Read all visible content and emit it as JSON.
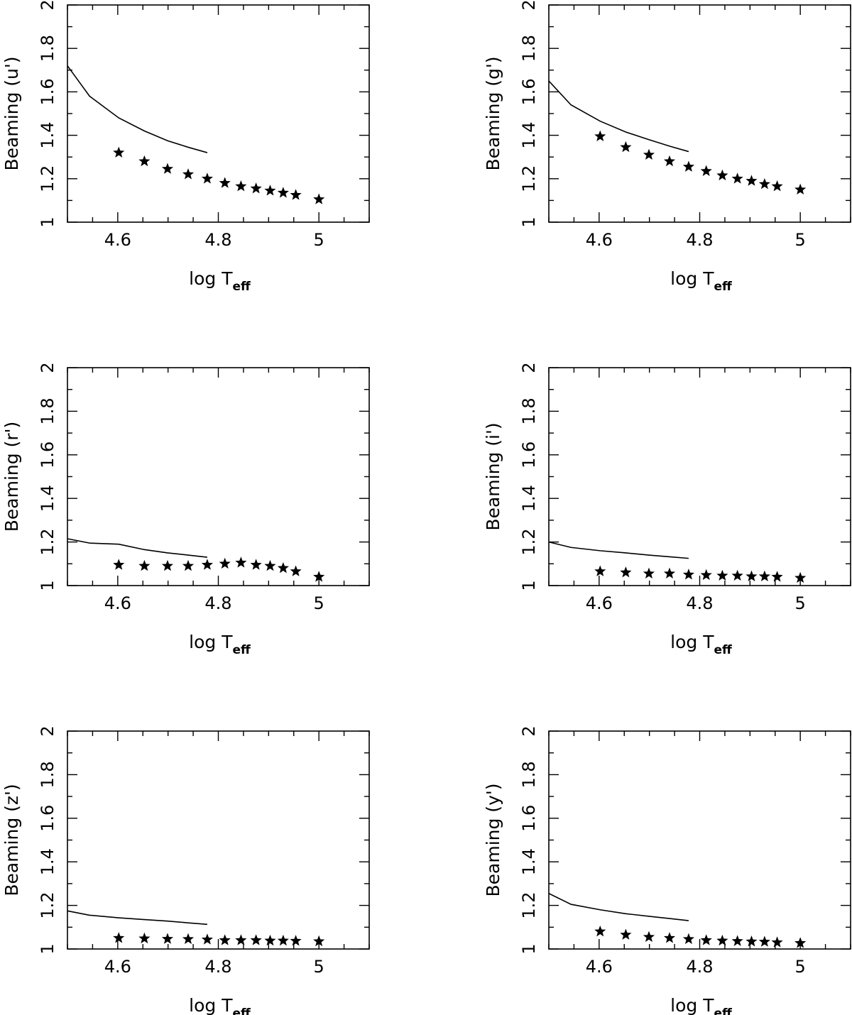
{
  "chart_data": [
    {
      "type": "scatter",
      "title": "",
      "xlabel": "log T",
      "xlabel_sub": "eff",
      "ylabel": "Beaming (u')",
      "xlim": [
        4.5,
        5.1
      ],
      "ylim": [
        1,
        2
      ],
      "xticks": [
        "4.6",
        "4.8",
        "5"
      ],
      "yticks": [
        "1",
        "1.2",
        "1.4",
        "1.6",
        "1.8",
        "2"
      ],
      "grid": false,
      "series": [
        {
          "style": "line",
          "x": [
            4.5,
            4.544,
            4.602,
            4.653,
            4.699,
            4.74,
            4.778
          ],
          "y": [
            1.72,
            1.58,
            1.48,
            1.42,
            1.375,
            1.345,
            1.32
          ]
        },
        {
          "style": "star",
          "x": [
            4.602,
            4.653,
            4.699,
            4.74,
            4.778,
            4.813,
            4.845,
            4.875,
            4.903,
            4.929,
            4.954,
            5.0
          ],
          "y": [
            1.32,
            1.28,
            1.245,
            1.22,
            1.2,
            1.18,
            1.165,
            1.155,
            1.145,
            1.135,
            1.125,
            1.105
          ]
        }
      ]
    },
    {
      "type": "scatter",
      "title": "",
      "xlabel": "log T",
      "xlabel_sub": "eff",
      "ylabel": "Beaming (g')",
      "xlim": [
        4.5,
        5.1
      ],
      "ylim": [
        1,
        2
      ],
      "xticks": [
        "4.6",
        "4.8",
        "5"
      ],
      "yticks": [
        "1",
        "1.2",
        "1.4",
        "1.6",
        "1.8",
        "2"
      ],
      "grid": false,
      "series": [
        {
          "style": "line",
          "x": [
            4.5,
            4.544,
            4.602,
            4.653,
            4.699,
            4.74,
            4.778
          ],
          "y": [
            1.65,
            1.54,
            1.465,
            1.415,
            1.38,
            1.35,
            1.325
          ]
        },
        {
          "style": "star",
          "x": [
            4.602,
            4.653,
            4.699,
            4.74,
            4.778,
            4.813,
            4.845,
            4.875,
            4.903,
            4.929,
            4.954,
            5.0
          ],
          "y": [
            1.395,
            1.345,
            1.31,
            1.28,
            1.255,
            1.235,
            1.215,
            1.2,
            1.19,
            1.175,
            1.165,
            1.15
          ]
        }
      ]
    },
    {
      "type": "scatter",
      "title": "",
      "xlabel": "log T",
      "xlabel_sub": "eff",
      "ylabel": "Beaming (r')",
      "xlim": [
        4.5,
        5.1
      ],
      "ylim": [
        1,
        2
      ],
      "xticks": [
        "4.6",
        "4.8",
        "5"
      ],
      "yticks": [
        "1",
        "1.2",
        "1.4",
        "1.6",
        "1.8",
        "2"
      ],
      "grid": false,
      "series": [
        {
          "style": "line",
          "x": [
            4.5,
            4.544,
            4.602,
            4.653,
            4.699,
            4.74,
            4.778
          ],
          "y": [
            1.215,
            1.195,
            1.19,
            1.165,
            1.15,
            1.14,
            1.13
          ]
        },
        {
          "style": "star",
          "x": [
            4.602,
            4.653,
            4.699,
            4.74,
            4.778,
            4.813,
            4.845,
            4.875,
            4.903,
            4.929,
            4.954,
            5.0
          ],
          "y": [
            1.095,
            1.09,
            1.09,
            1.09,
            1.095,
            1.1,
            1.105,
            1.095,
            1.09,
            1.08,
            1.065,
            1.04
          ]
        }
      ]
    },
    {
      "type": "scatter",
      "title": "",
      "xlabel": "log T",
      "xlabel_sub": "eff",
      "ylabel": "Beaming (i')",
      "xlim": [
        4.5,
        5.1
      ],
      "ylim": [
        1,
        2
      ],
      "xticks": [
        "4.6",
        "4.8",
        "5"
      ],
      "yticks": [
        "1",
        "1.2",
        "1.4",
        "1.6",
        "1.8",
        "2"
      ],
      "grid": false,
      "series": [
        {
          "style": "line",
          "x": [
            4.5,
            4.544,
            4.602,
            4.653,
            4.699,
            4.74,
            4.778
          ],
          "y": [
            1.2,
            1.175,
            1.16,
            1.15,
            1.14,
            1.132,
            1.125
          ]
        },
        {
          "style": "star",
          "x": [
            4.602,
            4.653,
            4.699,
            4.74,
            4.778,
            4.813,
            4.845,
            4.875,
            4.903,
            4.929,
            4.954,
            5.0
          ],
          "y": [
            1.065,
            1.06,
            1.055,
            1.055,
            1.05,
            1.048,
            1.045,
            1.045,
            1.042,
            1.042,
            1.04,
            1.035
          ]
        }
      ]
    },
    {
      "type": "scatter",
      "title": "",
      "xlabel": "log T",
      "xlabel_sub": "eff",
      "ylabel": "Beaming (z')",
      "xlim": [
        4.5,
        5.1
      ],
      "ylim": [
        1,
        2
      ],
      "xticks": [
        "4.6",
        "4.8",
        "5"
      ],
      "yticks": [
        "1",
        "1.2",
        "1.4",
        "1.6",
        "1.8",
        "2"
      ],
      "grid": false,
      "series": [
        {
          "style": "line",
          "x": [
            4.5,
            4.544,
            4.602,
            4.653,
            4.699,
            4.74,
            4.778
          ],
          "y": [
            1.175,
            1.155,
            1.143,
            1.135,
            1.128,
            1.12,
            1.113
          ]
        },
        {
          "style": "star",
          "x": [
            4.602,
            4.653,
            4.699,
            4.74,
            4.778,
            4.813,
            4.845,
            4.875,
            4.903,
            4.929,
            4.954,
            5.0
          ],
          "y": [
            1.05,
            1.048,
            1.046,
            1.045,
            1.043,
            1.04,
            1.04,
            1.04,
            1.038,
            1.038,
            1.037,
            1.035
          ]
        }
      ]
    },
    {
      "type": "scatter",
      "title": "",
      "xlabel": "log T",
      "xlabel_sub": "eff",
      "ylabel": "Beaming (y')",
      "xlim": [
        4.5,
        5.1
      ],
      "ylim": [
        1,
        2
      ],
      "xticks": [
        "4.6",
        "4.8",
        "5"
      ],
      "yticks": [
        "1",
        "1.2",
        "1.4",
        "1.6",
        "1.8",
        "2"
      ],
      "grid": false,
      "series": [
        {
          "style": "line",
          "x": [
            4.5,
            4.544,
            4.602,
            4.653,
            4.699,
            4.74,
            4.778
          ],
          "y": [
            1.255,
            1.205,
            1.18,
            1.162,
            1.15,
            1.14,
            1.13
          ]
        },
        {
          "style": "star",
          "x": [
            4.602,
            4.653,
            4.699,
            4.74,
            4.778,
            4.813,
            4.845,
            4.875,
            4.903,
            4.929,
            4.954,
            5.0
          ],
          "y": [
            1.08,
            1.065,
            1.055,
            1.05,
            1.045,
            1.04,
            1.038,
            1.036,
            1.034,
            1.033,
            1.03,
            1.027
          ]
        }
      ]
    }
  ]
}
